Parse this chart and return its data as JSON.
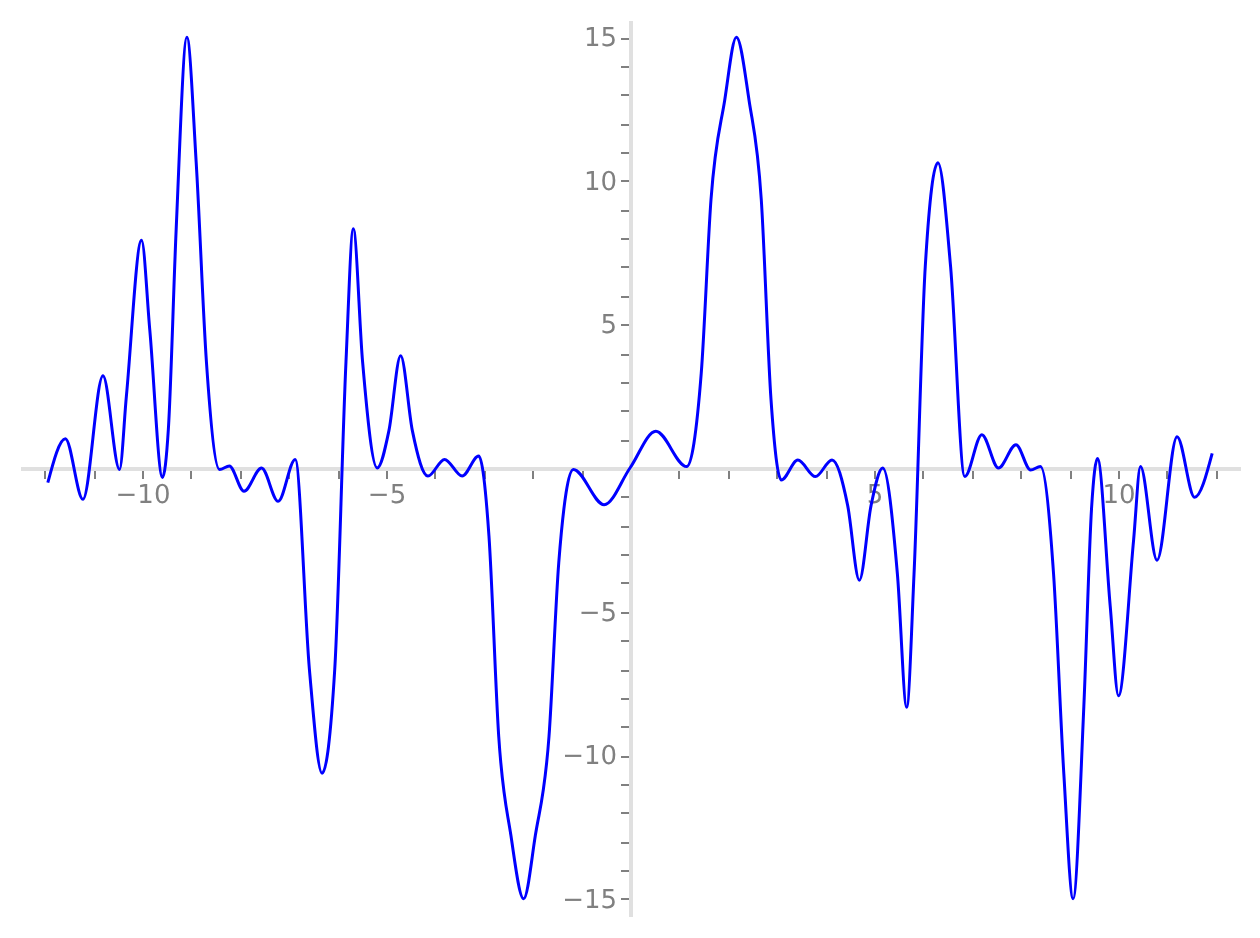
{
  "chart_data": {
    "type": "line",
    "xlim": [
      -12.5,
      12.5
    ],
    "ylim": [
      -15.6,
      15.6
    ],
    "xticks": [
      {
        "value": -12,
        "label": null
      },
      {
        "value": -11,
        "label": null
      },
      -10,
      {
        "value": -9,
        "label": null
      },
      {
        "value": -8,
        "label": null
      },
      {
        "value": -7,
        "label": null
      },
      {
        "value": -6,
        "label": null
      },
      -5,
      {
        "value": -4,
        "label": null
      },
      {
        "value": -3,
        "label": null
      },
      {
        "value": -2,
        "label": null
      },
      {
        "value": -1,
        "label": null
      },
      {
        "value": 1,
        "label": null
      },
      {
        "value": 2,
        "label": null
      },
      {
        "value": 3,
        "label": null
      },
      {
        "value": 4,
        "label": null
      },
      5,
      {
        "value": 6,
        "label": null
      },
      {
        "value": 7,
        "label": null
      },
      {
        "value": 8,
        "label": null
      },
      {
        "value": 9,
        "label": null
      },
      10,
      {
        "value": 11,
        "label": null
      },
      {
        "value": 12,
        "label": null
      }
    ],
    "yticks": [
      -15,
      {
        "value": -14,
        "label": null
      },
      {
        "value": -13,
        "label": null
      },
      {
        "value": -12,
        "label": null
      },
      {
        "value": -11,
        "label": null
      },
      -10,
      {
        "value": -9,
        "label": null
      },
      {
        "value": -8,
        "label": null
      },
      {
        "value": -7,
        "label": null
      },
      {
        "value": -6,
        "label": null
      },
      -5,
      {
        "value": -4,
        "label": null
      },
      {
        "value": -3,
        "label": null
      },
      {
        "value": -2,
        "label": null
      },
      {
        "value": -1,
        "label": null
      },
      {
        "value": 1,
        "label": null
      },
      {
        "value": 2,
        "label": null
      },
      {
        "value": 3,
        "label": null
      },
      {
        "value": 4,
        "label": null
      },
      5,
      {
        "value": 6,
        "label": null
      },
      {
        "value": 7,
        "label": null
      },
      {
        "value": 8,
        "label": null
      },
      {
        "value": 9,
        "label": null
      },
      10,
      {
        "value": 11,
        "label": null
      },
      {
        "value": 12,
        "label": null
      },
      {
        "value": 13,
        "label": null
      },
      {
        "value": 14,
        "label": null
      },
      15
    ],
    "x": [
      -11.93,
      -11.57,
      -11.21,
      -10.8,
      -10.46,
      -10.32,
      -10.01,
      -9.84,
      -9.58,
      -9.46,
      -9.3,
      -9.08,
      -8.89,
      -8.68,
      -8.41,
      -8.21,
      -7.91,
      -7.55,
      -7.21,
      -6.86,
      -6.57,
      -6.31,
      -6.05,
      -5.82,
      -5.67,
      -5.48,
      -5.18,
      -4.94,
      -4.7,
      -4.46,
      -4.14,
      -3.8,
      -3.44,
      -3.1,
      -2.89,
      -2.69,
      -2.44,
      -2.18,
      -1.94,
      -1.66,
      -1.46,
      -1.16,
      -0.53,
      0,
      0.53,
      1.16,
      1.46,
      1.66,
      1.94,
      2.18,
      2.44,
      2.69,
      2.89,
      3.1,
      3.44,
      3.8,
      4.14,
      4.46,
      4.7,
      4.94,
      5.18,
      5.48,
      5.67,
      5.82,
      6.05,
      6.31,
      6.57,
      6.86,
      7.21,
      7.55,
      7.91,
      8.21,
      8.41,
      8.68,
      8.89,
      9.08,
      9.3,
      9.46,
      9.58,
      9.84,
      10.01,
      10.32,
      10.46,
      10.8,
      11.21,
      11.57,
      11.93
    ],
    "series": [
      {
        "color": "#0000ff",
        "values": [
          -0.51,
          1.02,
          -1.09,
          3.21,
          -0.05,
          2.5,
          7.93,
          4.8,
          -0.33,
          1.35,
          8.3,
          15,
          10.65,
          3.7,
          -0.05,
          0.07,
          -0.81,
          0,
          -1.16,
          0.3,
          -7,
          -10.63,
          -7,
          3.7,
          8.33,
          3.7,
          0,
          1.3,
          3.91,
          1.3,
          -0.28,
          0.3,
          -0.28,
          0.42,
          -2.37,
          -9.35,
          -12.8,
          -15,
          -12.8,
          -9.35,
          -3.3,
          -0.05,
          -1.28,
          0,
          1.28,
          0.05,
          3.3,
          9.35,
          12.8,
          15,
          12.8,
          9.35,
          2.37,
          -0.42,
          0.28,
          -0.3,
          0.28,
          -1.3,
          -3.91,
          -1.3,
          0,
          -3.7,
          -8.33,
          -3.7,
          7,
          10.63,
          7,
          -0.3,
          1.16,
          0,
          0.81,
          -0.07,
          0.05,
          -3.7,
          -10.65,
          -15,
          -8.3,
          -1.35,
          0.33,
          -4.8,
          -7.93,
          -2.5,
          0.05,
          -3.21,
          1.09,
          -1.02,
          0.51
        ]
      }
    ]
  }
}
